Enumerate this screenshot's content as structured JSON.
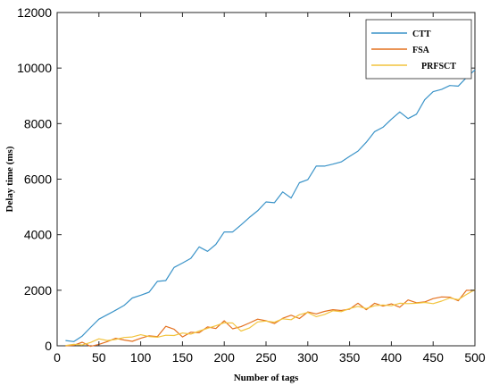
{
  "chart_data": {
    "type": "line",
    "xlabel": "Number of tags",
    "ylabel": "Delay time (ms)",
    "xlim": [
      0,
      500
    ],
    "ylim": [
      0,
      12000
    ],
    "xticks": [
      0,
      50,
      100,
      150,
      200,
      250,
      300,
      350,
      400,
      450,
      500
    ],
    "yticks": [
      0,
      2000,
      4000,
      6000,
      8000,
      10000,
      12000
    ],
    "xtick_labels": [
      "0",
      "50",
      "100",
      "150",
      "200",
      "250",
      "300",
      "350",
      "400",
      "450",
      "500"
    ],
    "ytick_labels": [
      "0",
      "2000",
      "4000",
      "6000",
      "8000",
      "10000",
      "12000"
    ],
    "grid": false,
    "legend_position": "top-right",
    "series": [
      {
        "name": "CTT",
        "color": "#3a93c8",
        "x": [
          10,
          20,
          30,
          40,
          50,
          60,
          70,
          80,
          90,
          100,
          110,
          120,
          130,
          140,
          150,
          160,
          170,
          180,
          190,
          200,
          210,
          220,
          230,
          240,
          250,
          260,
          270,
          280,
          290,
          300,
          310,
          320,
          330,
          340,
          350,
          360,
          370,
          380,
          390,
          400,
          410,
          420,
          430,
          440,
          450,
          460,
          470,
          480,
          490,
          500
        ],
        "values": [
          190,
          150,
          350,
          660,
          960,
          1120,
          1280,
          1450,
          1720,
          1820,
          1930,
          2320,
          2350,
          2820,
          2980,
          3150,
          3560,
          3400,
          3650,
          4100,
          4100,
          4350,
          4620,
          4860,
          5180,
          5150,
          5540,
          5320,
          5870,
          5980,
          6470,
          6470,
          6540,
          6620,
          6820,
          7010,
          7330,
          7710,
          7870,
          8160,
          8420,
          8180,
          8340,
          8860,
          9150,
          9230,
          9370,
          9350,
          9660,
          9930
        ]
      },
      {
        "name": "FSA",
        "color": "#e4711f",
        "x": [
          10,
          20,
          30,
          40,
          50,
          60,
          70,
          80,
          90,
          100,
          110,
          120,
          130,
          140,
          150,
          160,
          170,
          180,
          190,
          200,
          210,
          220,
          230,
          240,
          250,
          260,
          270,
          280,
          290,
          300,
          310,
          320,
          330,
          340,
          350,
          360,
          370,
          380,
          390,
          400,
          410,
          420,
          430,
          440,
          450,
          460,
          470,
          480,
          490,
          500
        ],
        "values": [
          0,
          20,
          130,
          -20,
          50,
          150,
          270,
          210,
          160,
          270,
          360,
          330,
          700,
          600,
          320,
          490,
          470,
          680,
          620,
          900,
          610,
          690,
          820,
          960,
          900,
          800,
          990,
          1100,
          980,
          1220,
          1150,
          1240,
          1300,
          1270,
          1320,
          1530,
          1300,
          1530,
          1430,
          1510,
          1390,
          1650,
          1550,
          1580,
          1700,
          1760,
          1750,
          1620,
          2000,
          1990
        ]
      },
      {
        "name": "PRFSCT",
        "color": "#f2c43d",
        "x": [
          10,
          20,
          30,
          40,
          50,
          60,
          70,
          80,
          90,
          100,
          110,
          120,
          130,
          140,
          150,
          160,
          170,
          180,
          190,
          200,
          210,
          220,
          230,
          240,
          250,
          260,
          270,
          280,
          290,
          300,
          310,
          320,
          330,
          340,
          350,
          360,
          370,
          380,
          390,
          400,
          410,
          420,
          430,
          440,
          450,
          460,
          470,
          480,
          490,
          500
        ],
        "values": [
          10,
          50,
          30,
          120,
          250,
          190,
          230,
          300,
          320,
          400,
          330,
          310,
          380,
          370,
          460,
          420,
          530,
          630,
          720,
          830,
          820,
          530,
          640,
          860,
          890,
          850,
          970,
          940,
          1120,
          1200,
          1050,
          1130,
          1260,
          1230,
          1340,
          1420,
          1340,
          1440,
          1470,
          1440,
          1530,
          1520,
          1530,
          1560,
          1520,
          1610,
          1720,
          1660,
          1850,
          2020
        ]
      }
    ]
  }
}
